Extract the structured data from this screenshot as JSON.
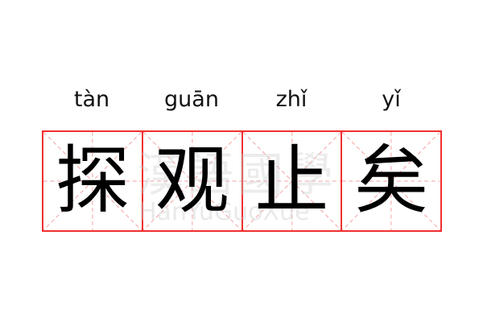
{
  "idiom": {
    "syllables": [
      {
        "pinyin": "tàn",
        "char": "探"
      },
      {
        "pinyin": "guān",
        "char": "观"
      },
      {
        "pinyin": "zhǐ",
        "char": "止"
      },
      {
        "pinyin": "yǐ",
        "char": "矣"
      }
    ]
  },
  "watermark": {
    "cn": "漢語國學",
    "en": "HanYuGuoXue"
  },
  "colors": {
    "grid": "#f03030",
    "guide": "#f5a0a0",
    "text": "#000000"
  }
}
